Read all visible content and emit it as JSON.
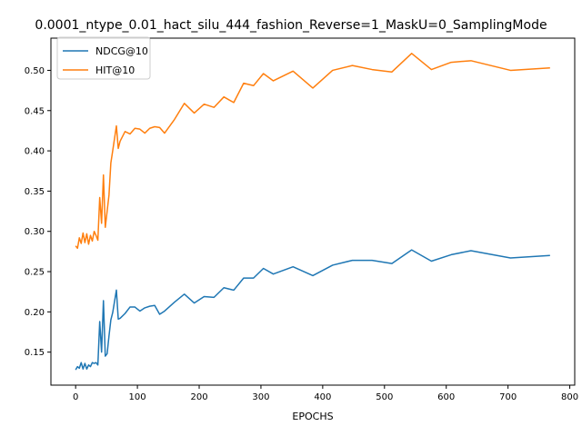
{
  "chart_data": {
    "type": "line",
    "title": "0.0001_ntype_0.01_hact_silu_444_fashion_Reverse=1_MaskU=0_SamplingMode",
    "xlabel": "EPOCHS",
    "ylabel": "",
    "xlim": [
      -40,
      808
    ],
    "ylim": [
      0.109,
      0.54
    ],
    "xticks": [
      0,
      100,
      200,
      300,
      400,
      500,
      600,
      700,
      800
    ],
    "yticks": [
      0.15,
      0.2,
      0.25,
      0.3,
      0.35,
      0.4,
      0.45,
      0.5
    ],
    "xtick_labels": [
      "0",
      "100",
      "200",
      "300",
      "400",
      "500",
      "600",
      "700",
      "800"
    ],
    "ytick_labels": [
      "0.15",
      "0.20",
      "0.25",
      "0.30",
      "0.35",
      "0.40",
      "0.45",
      "0.50"
    ],
    "grid": false,
    "legend_position": "top-left",
    "series": [
      {
        "name": "NDCG@10",
        "color": "#1f77b4",
        "x": [
          0,
          3,
          6,
          9,
          12,
          15,
          18,
          21,
          24,
          27,
          30,
          33,
          36,
          39,
          42,
          45,
          48,
          51,
          54,
          57,
          60,
          66,
          69,
          72,
          80,
          88,
          96,
          104,
          112,
          120,
          128,
          136,
          144,
          160,
          176,
          192,
          208,
          224,
          240,
          256,
          272,
          288,
          304,
          320,
          352,
          384,
          416,
          448,
          480,
          512,
          544,
          576,
          608,
          640,
          704,
          768
        ],
        "values": [
          0.128,
          0.132,
          0.13,
          0.137,
          0.129,
          0.136,
          0.129,
          0.134,
          0.132,
          0.137,
          0.136,
          0.137,
          0.134,
          0.188,
          0.15,
          0.214,
          0.145,
          0.148,
          0.17,
          0.19,
          0.199,
          0.227,
          0.191,
          0.192,
          0.198,
          0.206,
          0.206,
          0.201,
          0.205,
          0.207,
          0.208,
          0.197,
          0.201,
          0.212,
          0.222,
          0.211,
          0.219,
          0.218,
          0.23,
          0.227,
          0.242,
          0.242,
          0.254,
          0.247,
          0.256,
          0.245,
          0.258,
          0.264,
          0.264,
          0.26,
          0.277,
          0.263,
          0.271,
          0.276,
          0.267,
          0.27
        ]
      },
      {
        "name": "HIT@10",
        "color": "#ff7f0e",
        "x": [
          0,
          3,
          6,
          9,
          12,
          15,
          18,
          21,
          24,
          27,
          30,
          33,
          36,
          39,
          42,
          45,
          48,
          51,
          54,
          57,
          60,
          66,
          69,
          72,
          80,
          88,
          96,
          104,
          112,
          120,
          128,
          136,
          144,
          160,
          176,
          192,
          208,
          224,
          240,
          256,
          272,
          288,
          304,
          320,
          352,
          384,
          416,
          448,
          480,
          512,
          544,
          576,
          608,
          640,
          704,
          768
        ],
        "values": [
          0.282,
          0.279,
          0.292,
          0.285,
          0.298,
          0.286,
          0.297,
          0.284,
          0.295,
          0.288,
          0.3,
          0.295,
          0.289,
          0.342,
          0.31,
          0.37,
          0.305,
          0.325,
          0.345,
          0.385,
          0.4,
          0.431,
          0.403,
          0.412,
          0.424,
          0.421,
          0.428,
          0.427,
          0.422,
          0.428,
          0.43,
          0.429,
          0.422,
          0.439,
          0.459,
          0.447,
          0.458,
          0.454,
          0.467,
          0.46,
          0.484,
          0.481,
          0.496,
          0.487,
          0.499,
          0.478,
          0.5,
          0.506,
          0.501,
          0.498,
          0.521,
          0.501,
          0.51,
          0.512,
          0.5,
          0.503
        ]
      }
    ]
  }
}
